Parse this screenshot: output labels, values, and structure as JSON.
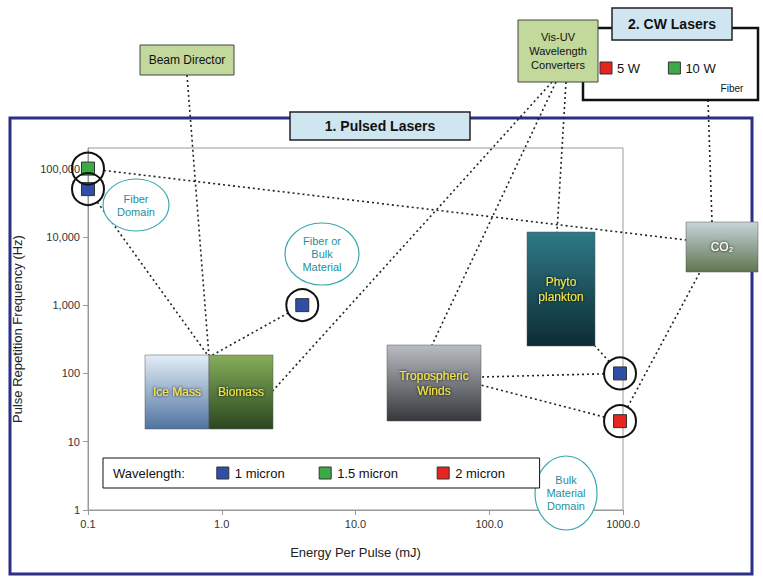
{
  "chart_data": {
    "type": "scatter",
    "title": "1. Pulsed Lasers",
    "x_label": "Energy Per Pulse (mJ)",
    "y_label": "Pulse Repetition Frequency (Hz)",
    "log": true,
    "grid": false,
    "xlim": [
      0.1,
      1000
    ],
    "xticks": [
      0.1,
      {
        "value": 1,
        "label": "1.0"
      },
      {
        "value": 10,
        "label": "10.0"
      },
      {
        "value": 100,
        "label": "100.0"
      },
      {
        "value": 1000,
        "label": "1000.0"
      }
    ],
    "ylim": [
      1,
      200000
    ],
    "yticks": [
      1,
      10,
      100,
      {
        "value": 1000,
        "label": "1,000"
      },
      {
        "value": 10000,
        "label": "10,000"
      },
      {
        "value": 100000,
        "label": "100,000"
      }
    ],
    "legend": "lower left",
    "legend_title": "Wavelength:",
    "series": [
      {
        "name": "1 micron",
        "color": "#2f4fa6",
        "marker": "square",
        "x": [
          0.1,
          4,
          950
        ],
        "values": [
          50000,
          1000,
          100
        ]
      },
      {
        "name": "1.5 micron",
        "color": "#3daa48",
        "marker": "square",
        "x": [
          0.1
        ],
        "values": [
          100000
        ]
      },
      {
        "name": "2 micron",
        "color": "#e5261f",
        "marker": "square",
        "x": [
          950
        ],
        "values": [
          20
        ]
      }
    ],
    "annotations": {
      "domains": [
        "Fiber Domain",
        "Fiber or Bulk Material",
        "Bulk Material Domain"
      ],
      "boxes": [
        "Beam Director",
        "Vis-UV Wavelength Converters"
      ],
      "images": [
        "Ice Mass",
        "Biomass",
        "Tropospheric Winds",
        "Phyto plankton",
        "CO₂"
      ],
      "cw_lasers": {
        "title": "2. CW Lasers",
        "items": [
          {
            "name": "5 W",
            "color": "#e5261f"
          },
          {
            "name": "10 W",
            "color": "#3daa48",
            "note": "Fiber"
          }
        ]
      }
    }
  }
}
